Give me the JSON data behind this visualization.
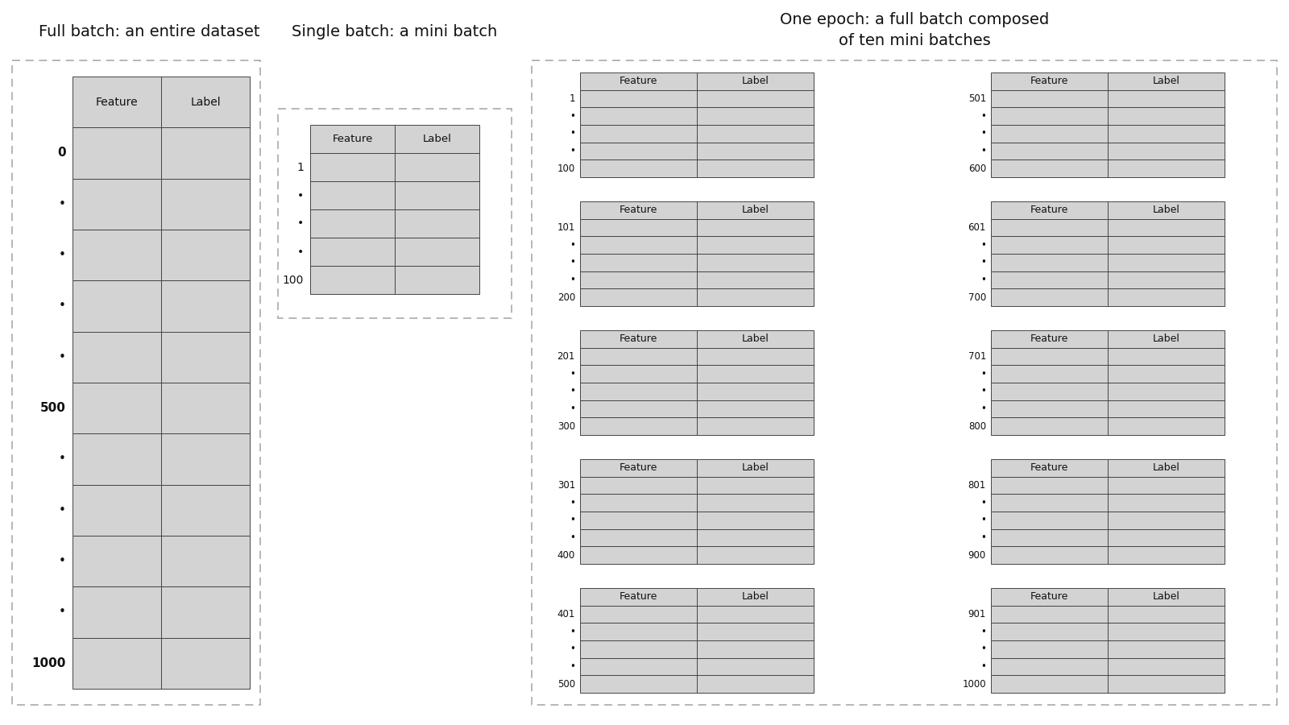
{
  "bg_color": "#ffffff",
  "table_fill_color": "#d3d3d3",
  "table_edge_color": "#444444",
  "dashed_border_color": "#aaaaaa",
  "text_color": "#111111",
  "title_fontsize": 14,
  "section1_title": "Full batch: an entire dataset",
  "section2_title": "Single batch: a mini batch",
  "section3_title": "One epoch: a full batch composed\nof ten mini batches",
  "full_batch_row_labels": [
    "0",
    "•",
    "•",
    "•",
    "•",
    "500",
    "•",
    "•",
    "•",
    "•",
    "1000"
  ],
  "mini_batch_row_labels": [
    "1",
    "•",
    "•",
    "•",
    "100"
  ],
  "epoch_batches_left": [
    {
      "start": "1",
      "dots": [
        "•",
        "•",
        "•"
      ],
      "end": "100"
    },
    {
      "start": "101",
      "dots": [
        "•",
        "•",
        "•"
      ],
      "end": "200"
    },
    {
      "start": "201",
      "dots": [
        "•",
        "•",
        "•"
      ],
      "end": "300"
    },
    {
      "start": "301",
      "dots": [
        "•",
        "•",
        "•"
      ],
      "end": "400"
    },
    {
      "start": "401",
      "dots": [
        "•",
        "•",
        "•"
      ],
      "end": "500"
    }
  ],
  "epoch_batches_right": [
    {
      "start": "501",
      "dots": [
        "•",
        "•",
        "•"
      ],
      "end": "600"
    },
    {
      "start": "601",
      "dots": [
        "•",
        "•",
        "•"
      ],
      "end": "700"
    },
    {
      "start": "701",
      "dots": [
        "•",
        "•",
        "•"
      ],
      "end": "800"
    },
    {
      "start": "801",
      "dots": [
        "•",
        "•",
        "•"
      ],
      "end": "900"
    },
    {
      "start": "901",
      "dots": [
        "•",
        "•",
        "•"
      ],
      "end": "1000"
    }
  ]
}
